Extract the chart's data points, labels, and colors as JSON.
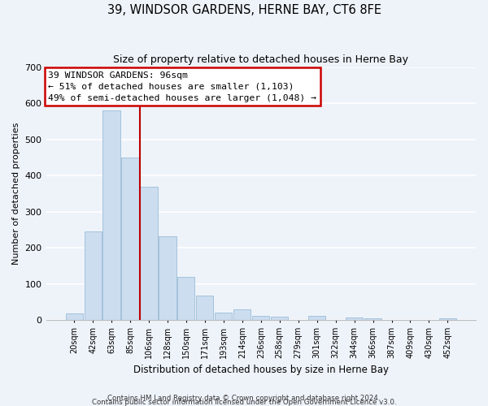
{
  "title": "39, WINDSOR GARDENS, HERNE BAY, CT6 8FE",
  "subtitle": "Size of property relative to detached houses in Herne Bay",
  "xlabel": "Distribution of detached houses by size in Herne Bay",
  "ylabel": "Number of detached properties",
  "bar_labels": [
    "20sqm",
    "42sqm",
    "63sqm",
    "85sqm",
    "106sqm",
    "128sqm",
    "150sqm",
    "171sqm",
    "193sqm",
    "214sqm",
    "236sqm",
    "258sqm",
    "279sqm",
    "301sqm",
    "322sqm",
    "344sqm",
    "366sqm",
    "387sqm",
    "409sqm",
    "430sqm",
    "452sqm"
  ],
  "bar_values": [
    18,
    245,
    580,
    450,
    370,
    232,
    120,
    67,
    20,
    30,
    12,
    10,
    0,
    12,
    0,
    8,
    5,
    0,
    0,
    0,
    4
  ],
  "bar_color": "#ccddf0",
  "bar_edge_color": "#9bbcd6",
  "vline_x": 3.5,
  "vline_color": "#bb0000",
  "ylim": [
    0,
    700
  ],
  "yticks": [
    0,
    100,
    200,
    300,
    400,
    500,
    600,
    700
  ],
  "annotation_title": "39 WINDSOR GARDENS: 96sqm",
  "annotation_line1": "← 51% of detached houses are smaller (1,103)",
  "annotation_line2": "49% of semi-detached houses are larger (1,048) →",
  "annotation_box_color": "#ffffff",
  "annotation_box_edge": "#cc0000",
  "footer1": "Contains HM Land Registry data © Crown copyright and database right 2024.",
  "footer2": "Contains public sector information licensed under the Open Government Licence v3.0.",
  "background_color": "#eef3fa",
  "plot_background": "#eef3fa",
  "grid_color": "#ffffff"
}
